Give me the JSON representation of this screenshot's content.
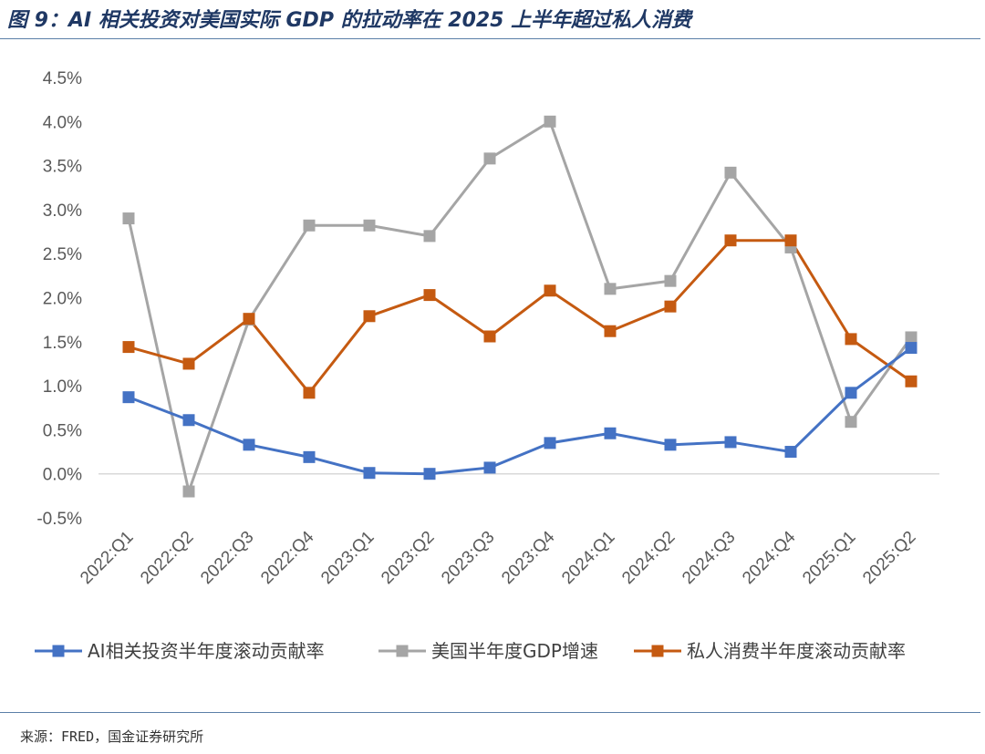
{
  "title": "图 9：AI 相关投资对美国实际 GDP 的拉动率在 2025 上半年超过私人消费",
  "source": "来源：FRED，国金证券研究所",
  "chart_data": {
    "type": "line",
    "categories": [
      "2022:Q1",
      "2022:Q2",
      "2022:Q3",
      "2022:Q4",
      "2023:Q1",
      "2023:Q2",
      "2023:Q3",
      "2023:Q4",
      "2024:Q1",
      "2024:Q2",
      "2024:Q3",
      "2024:Q4",
      "2025:Q1",
      "2025:Q2"
    ],
    "ylim": [
      -0.5,
      4.5
    ],
    "yticks": [
      "-0.5%",
      "0.0%",
      "0.5%",
      "1.0%",
      "1.5%",
      "2.0%",
      "2.5%",
      "3.0%",
      "3.5%",
      "4.0%",
      "4.5%"
    ],
    "grid": false,
    "legend_position": "bottom",
    "series": [
      {
        "name": "AI相关投资半年度滚动贡献率",
        "color": "#4472c4",
        "values": [
          0.87,
          0.61,
          0.33,
          0.19,
          0.01,
          0.0,
          0.07,
          0.35,
          0.46,
          0.33,
          0.36,
          0.25,
          0.92,
          1.43
        ]
      },
      {
        "name": "美国半年度GDP增速",
        "color": "#a5a5a5",
        "values": [
          2.9,
          -0.2,
          1.75,
          2.82,
          2.82,
          2.7,
          3.58,
          4.0,
          2.1,
          2.19,
          3.42,
          2.57,
          0.59,
          1.55
        ]
      },
      {
        "name": "私人消费半年度滚动贡献率",
        "color": "#c55a11",
        "values": [
          1.44,
          1.25,
          1.76,
          0.92,
          1.79,
          2.03,
          1.56,
          2.08,
          1.62,
          1.9,
          2.65,
          2.65,
          1.53,
          1.05
        ]
      }
    ]
  }
}
